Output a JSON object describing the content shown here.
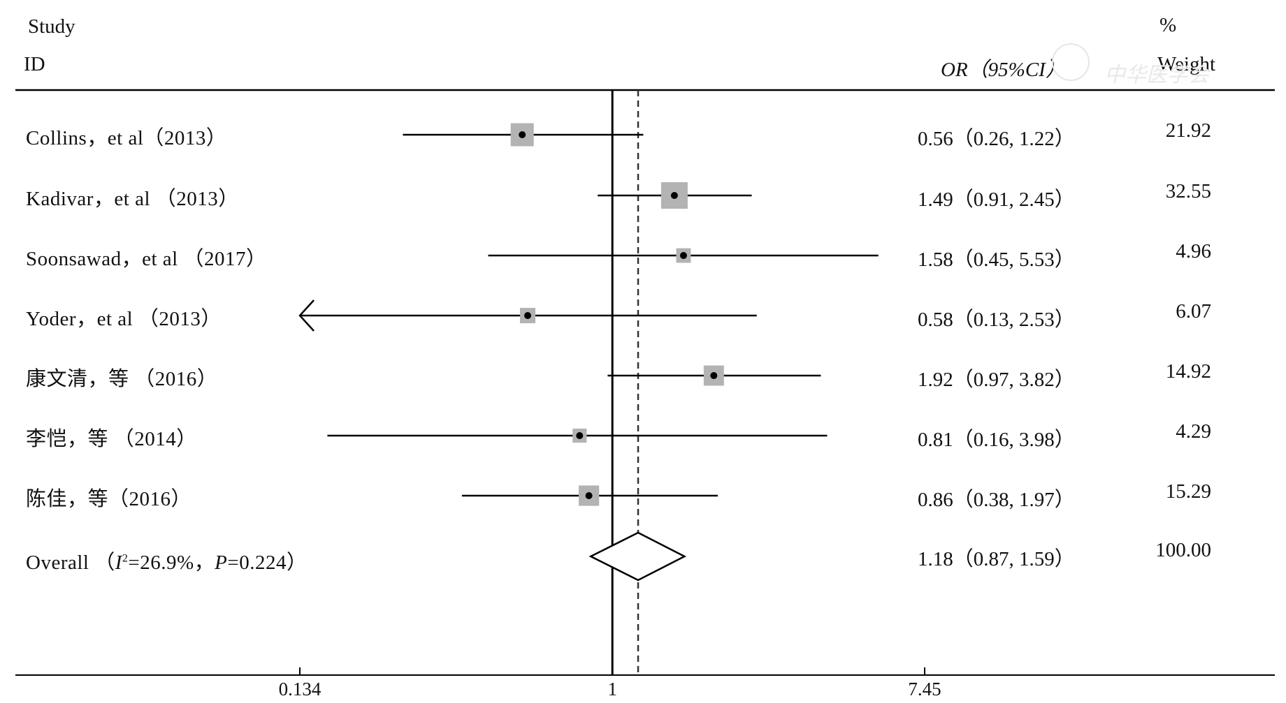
{
  "header": {
    "study_label": "Study",
    "id_label": "ID",
    "or_label": "OR（95%CI）",
    "percent_label": "%",
    "weight_label": "Weight"
  },
  "watermark": {
    "text": "中华医学会"
  },
  "chart_data": {
    "type": "forest",
    "effect_measure": "OR",
    "scale": "log",
    "xlim": [
      0.134,
      7.45
    ],
    "xticks": [
      0.134,
      1,
      7.45
    ],
    "xtick_labels": [
      "0.134",
      "1",
      "7.45"
    ],
    "null_line": 1,
    "pooled_line": 1.18,
    "studies": [
      {
        "label": "Collins，et al（2013）",
        "or": 0.56,
        "lo": 0.26,
        "hi": 1.22,
        "weight": 21.92,
        "ci_text": "0.56（0.26, 1.22）",
        "weight_text": "21.92"
      },
      {
        "label": "Kadivar，et al （2013）",
        "or": 1.49,
        "lo": 0.91,
        "hi": 2.45,
        "weight": 32.55,
        "ci_text": "1.49（0.91, 2.45）",
        "weight_text": "32.55"
      },
      {
        "label": "Soonsawad，et  al  （2017）",
        "or": 1.58,
        "lo": 0.45,
        "hi": 5.53,
        "weight": 4.96,
        "ci_text": "1.58（0.45, 5.53）",
        "weight_text": "4.96"
      },
      {
        "label": "Yoder，et  al  （2013）",
        "or": 0.58,
        "lo": 0.13,
        "hi": 2.53,
        "weight": 6.07,
        "ci_text": "0.58（0.13, 2.53）",
        "weight_text": "6.07"
      },
      {
        "label": "康文清，等 （2016）",
        "or": 1.92,
        "lo": 0.97,
        "hi": 3.82,
        "weight": 14.92,
        "ci_text": "1.92（0.97, 3.82）",
        "weight_text": "14.92"
      },
      {
        "label": "李恺，等 （2014）",
        "or": 0.81,
        "lo": 0.16,
        "hi": 3.98,
        "weight": 4.29,
        "ci_text": "0.81（0.16, 3.98）",
        "weight_text": "4.29"
      },
      {
        "label": "陈佳，等（2016）",
        "or": 0.86,
        "lo": 0.38,
        "hi": 1.97,
        "weight": 15.29,
        "ci_text": "0.86（0.38, 1.97）",
        "weight_text": "15.29"
      }
    ],
    "overall": {
      "label_prefix": "Overall （",
      "i2_symbol": "I",
      "i2_sup": "2",
      "i2_value": "=26.9%，",
      "p_symbol": "P",
      "p_value": "=0.224）",
      "or": 1.18,
      "lo": 0.87,
      "hi": 1.59,
      "weight": 100.0,
      "ci_text": "1.18（0.87, 1.59）",
      "weight_text": "100.00"
    }
  }
}
